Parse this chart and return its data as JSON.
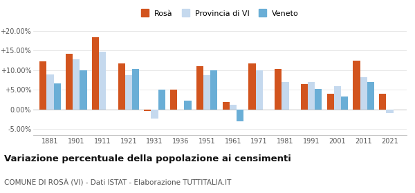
{
  "years": [
    1881,
    1901,
    1911,
    1921,
    1931,
    1936,
    1951,
    1961,
    1971,
    1981,
    1991,
    2001,
    2011,
    2021
  ],
  "rosa": [
    12.3,
    14.2,
    18.5,
    11.8,
    -0.3,
    5.0,
    11.1,
    2.0,
    11.7,
    10.4,
    6.5,
    4.0,
    12.4,
    4.0
  ],
  "provincia": [
    9.0,
    12.8,
    14.8,
    8.7,
    -2.3,
    null,
    8.7,
    1.2,
    10.0,
    7.0,
    7.0,
    6.0,
    8.2,
    -0.8
  ],
  "veneto": [
    6.7,
    10.0,
    null,
    10.4,
    5.1,
    2.2,
    10.0,
    -3.0,
    null,
    null,
    5.3,
    3.3,
    7.1,
    null
  ],
  "rosa_color": "#d2541e",
  "provincia_color": "#c5d9ee",
  "veneto_color": "#6aaed6",
  "title": "Variazione percentuale della popolazione ai censimenti",
  "subtitle": "COMUNE DI ROSÀ (VI) - Dati ISTAT - Elaborazione TUTTITALIA.IT",
  "ylim": [
    -6.5,
    22
  ],
  "yticks": [
    -5,
    0,
    5,
    10,
    15,
    20
  ],
  "ytick_labels": [
    "-5.00%",
    "0.00%",
    "+5.00%",
    "+10.00%",
    "+15.00%",
    "+20.00%"
  ],
  "legend_labels": [
    "Rosà",
    "Provincia di VI",
    "Veneto"
  ],
  "bar_width": 0.27
}
